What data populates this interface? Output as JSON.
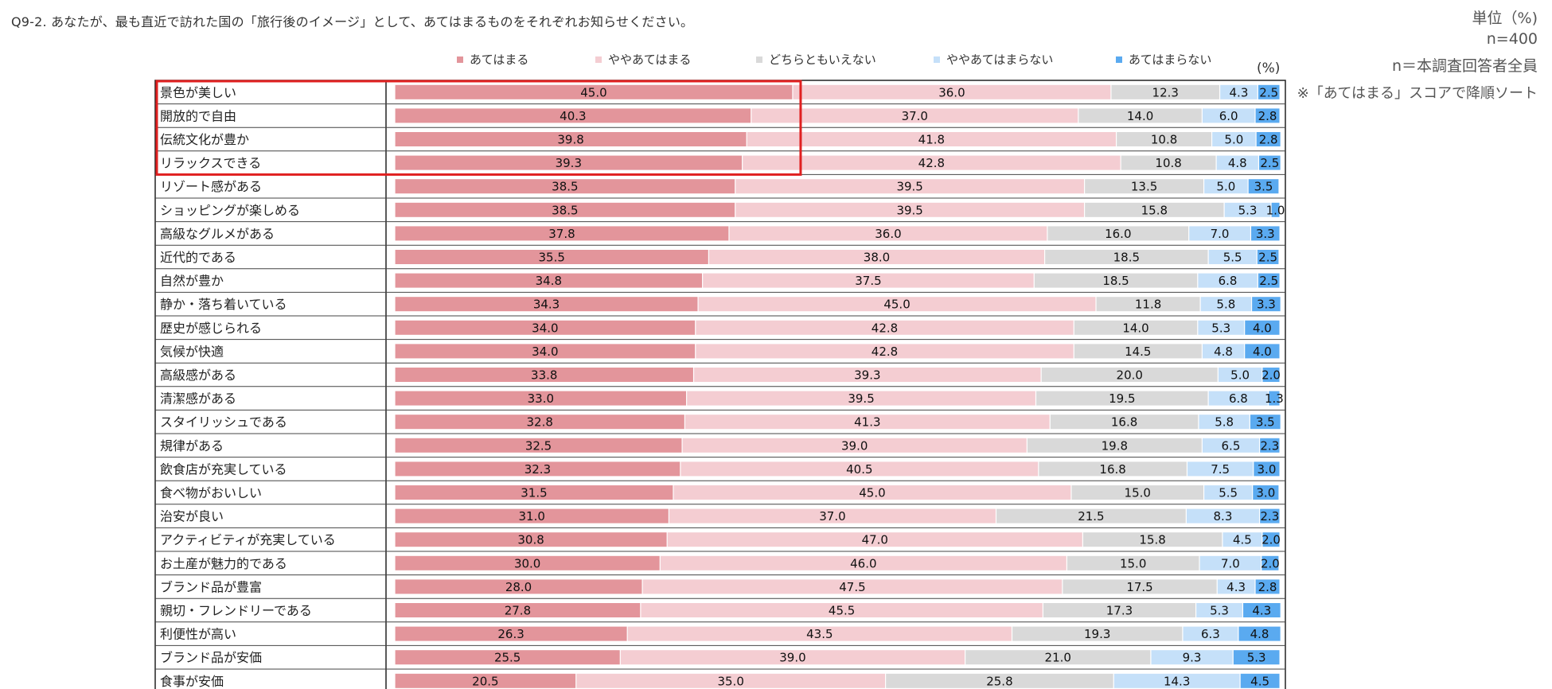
{
  "header": {
    "title": "Q9-2.  あなたが、最も直近で訪れた国の「旅行後のイメージ」として、あてはまるものをそれぞれお知らせください。",
    "unit": "単位（%)",
    "sample": "n=400",
    "base": "n＝本調査回答者全員",
    "sort_note": "※「あてはまる」スコアで降順ソート",
    "pct_symbol": "(%)"
  },
  "colors": [
    "#e3959b",
    "#f4cdd2",
    "#d9d9d9",
    "#c5e0f9",
    "#5aaaf0"
  ],
  "highlight": {
    "rows": 4,
    "color": "#e02020"
  },
  "chart_data": {
    "type": "stacked-bar-horizontal",
    "series_names": [
      "あてはまる",
      "ややあてはまる",
      "どちらともいえない",
      "ややあてはまらない",
      "あてはまらない"
    ],
    "categories": [
      "景色が美しい",
      "開放的で自由",
      "伝統文化が豊か",
      "リラックスできる",
      "リゾート感がある",
      "ショッピングが楽しめる",
      "高級なグルメがある",
      "近代的である",
      "自然が豊か",
      "静か・落ち着いている",
      "歴史が感じられる",
      "気候が快適",
      "高級感がある",
      "清潔感がある",
      "スタイリッシュである",
      "規律がある",
      "飲食店が充実している",
      "食べ物がおいしい",
      "治安が良い",
      "アクティビティが充実している",
      "お土産が魅力的である",
      "ブランド品が豊富",
      "親切・フレンドリーである",
      "利便性が高い",
      "ブランド品が安価",
      "食事が安価"
    ],
    "values": [
      [
        "45.0",
        "36.0",
        "12.3",
        "4.3",
        "2.5"
      ],
      [
        "40.3",
        "37.0",
        "14.0",
        "6.0",
        "2.8"
      ],
      [
        "39.8",
        "41.8",
        "10.8",
        "5.0",
        "2.8"
      ],
      [
        "39.3",
        "42.8",
        "10.8",
        "4.8",
        "2.5"
      ],
      [
        "38.5",
        "39.5",
        "13.5",
        "5.0",
        "3.5"
      ],
      [
        "38.5",
        "39.5",
        "15.8",
        "5.3",
        "1.0"
      ],
      [
        "37.8",
        "36.0",
        "16.0",
        "7.0",
        "3.3"
      ],
      [
        "35.5",
        "38.0",
        "18.5",
        "5.5",
        "2.5"
      ],
      [
        "34.8",
        "37.5",
        "18.5",
        "6.8",
        "2.5"
      ],
      [
        "34.3",
        "45.0",
        "11.8",
        "5.8",
        "3.3"
      ],
      [
        "34.0",
        "42.8",
        "14.0",
        "5.3",
        "4.0"
      ],
      [
        "34.0",
        "42.8",
        "14.5",
        "4.8",
        "4.0"
      ],
      [
        "33.8",
        "39.3",
        "20.0",
        "5.0",
        "2.0"
      ],
      [
        "33.0",
        "39.5",
        "19.5",
        "6.8",
        "1.3"
      ],
      [
        "32.8",
        "41.3",
        "16.8",
        "5.8",
        "3.5"
      ],
      [
        "32.5",
        "39.0",
        "19.8",
        "6.5",
        "2.3"
      ],
      [
        "32.3",
        "40.5",
        "16.8",
        "7.5",
        "3.0"
      ],
      [
        "31.5",
        "45.0",
        "15.0",
        "5.5",
        "3.0"
      ],
      [
        "31.0",
        "37.0",
        "21.5",
        "8.3",
        "2.3"
      ],
      [
        "30.8",
        "47.0",
        "15.8",
        "4.5",
        "2.0"
      ],
      [
        "30.0",
        "46.0",
        "15.0",
        "7.0",
        "2.0"
      ],
      [
        "28.0",
        "47.5",
        "17.5",
        "4.3",
        "2.8"
      ],
      [
        "27.8",
        "45.5",
        "17.3",
        "5.3",
        "4.3"
      ],
      [
        "26.3",
        "43.5",
        "19.3",
        "6.3",
        "4.8"
      ],
      [
        "25.5",
        "39.0",
        "21.0",
        "9.3",
        "5.3"
      ],
      [
        "20.5",
        "35.0",
        "25.8",
        "14.3",
        "4.5"
      ]
    ],
    "xlim": [
      0,
      100
    ],
    "legend_position": "top"
  }
}
